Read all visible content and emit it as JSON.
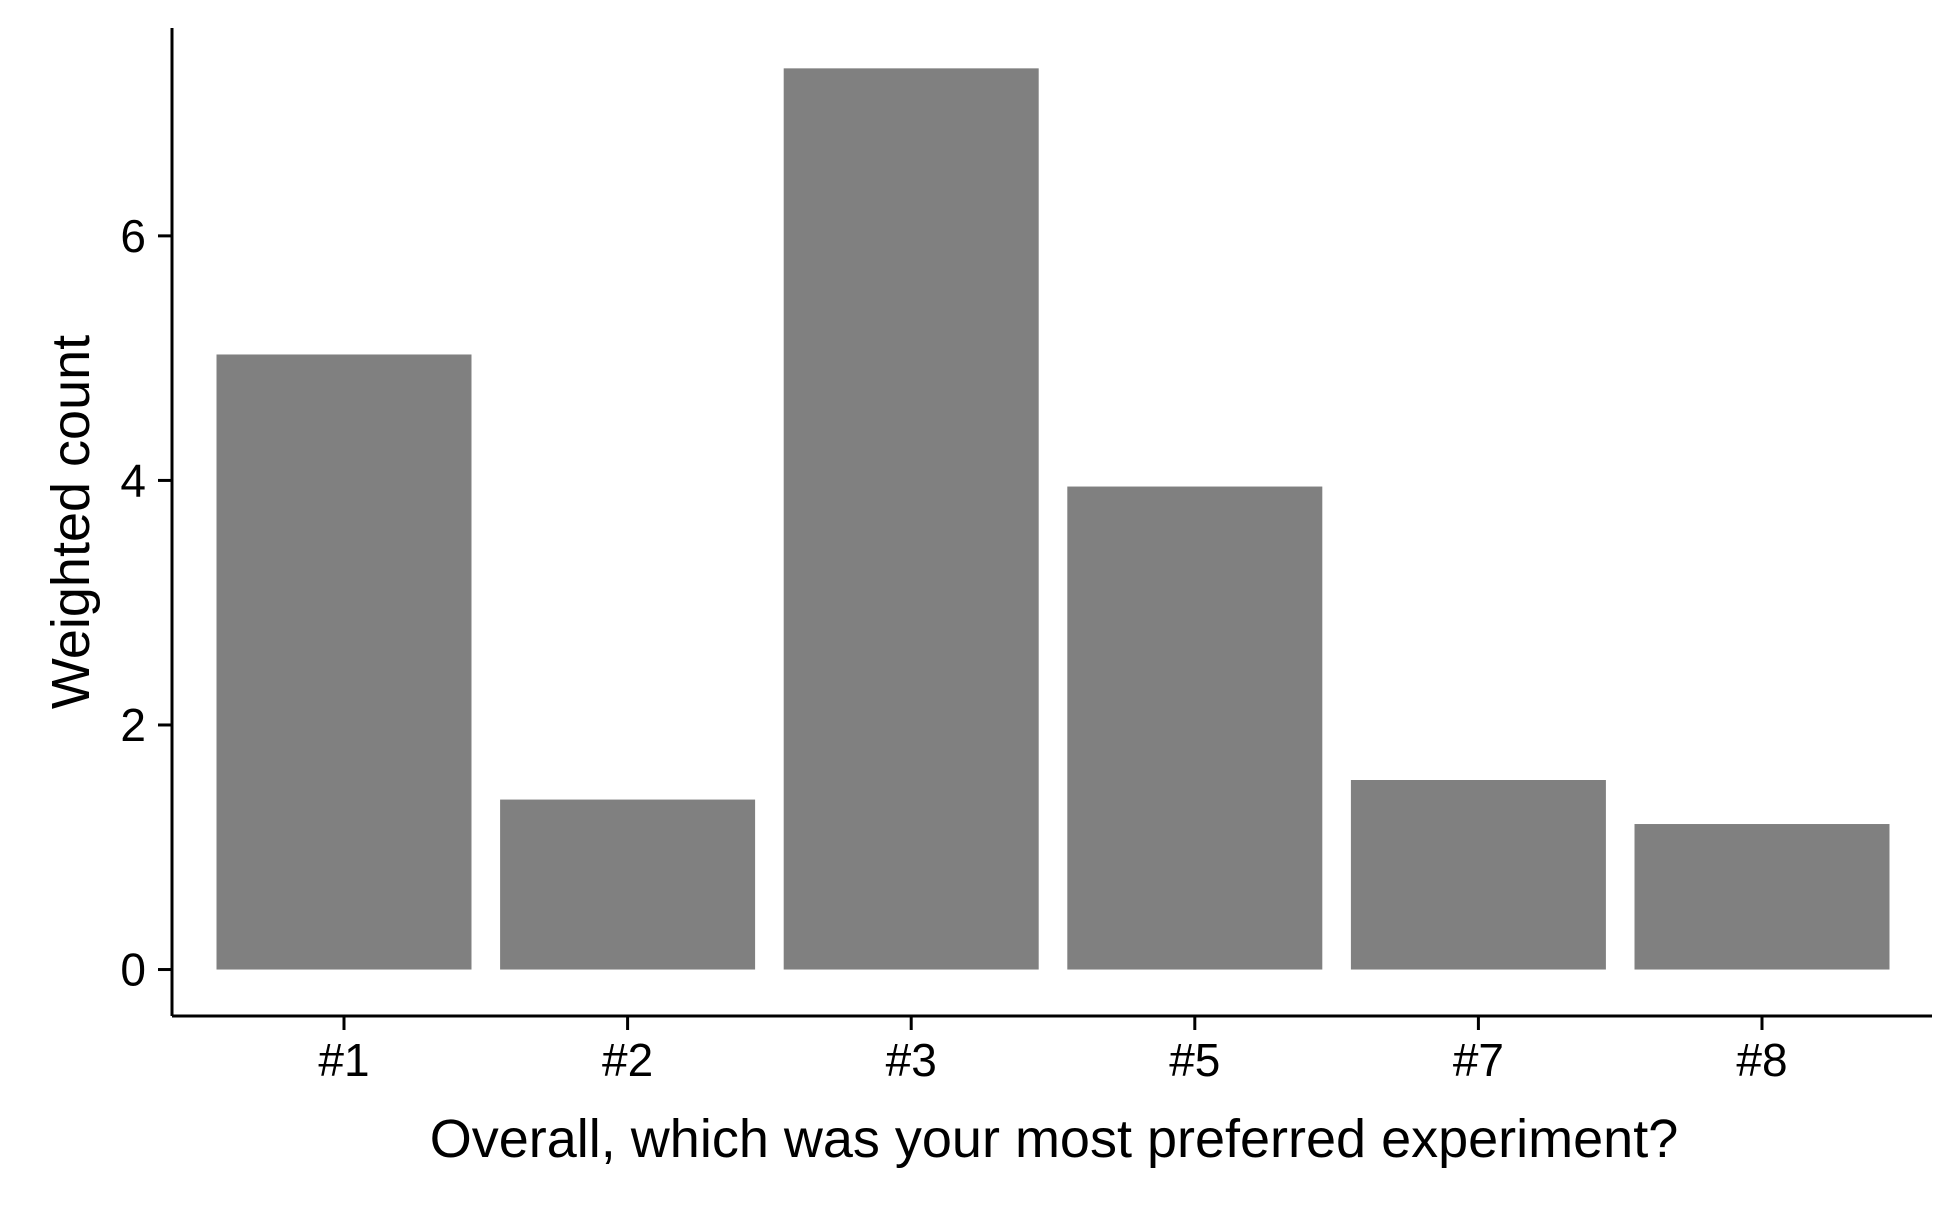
{
  "chart_data": {
    "type": "bar",
    "title": "",
    "xlabel": "Overall, which was your most preferred experiment?",
    "ylabel": "Weighted count",
    "categories": [
      "#1",
      "#2",
      "#3",
      "#5",
      "#7",
      "#8"
    ],
    "values": [
      5.03,
      1.39,
      7.37,
      3.95,
      1.55,
      1.19
    ],
    "ylim": [
      -0.38,
      7.7
    ],
    "yticks": [
      0,
      2,
      4,
      6
    ],
    "grid": false,
    "legend": "none",
    "bar_color": "#808080",
    "axis_color": "#000000"
  }
}
